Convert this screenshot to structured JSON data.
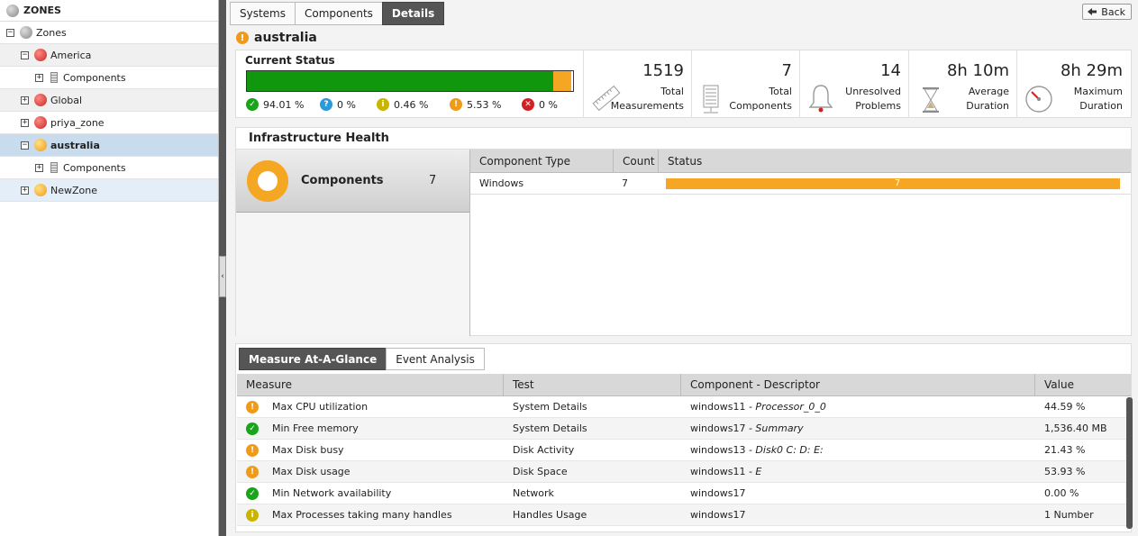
{
  "sidebar": {
    "title": "ZONES",
    "items": [
      {
        "label": "Zones"
      },
      {
        "label": "America"
      },
      {
        "label": "Components"
      },
      {
        "label": "Global"
      },
      {
        "label": "priya_zone"
      },
      {
        "label": "australia"
      },
      {
        "label": "Components"
      },
      {
        "label": "NewZone"
      }
    ]
  },
  "header": {
    "tabs": [
      "Systems",
      "Components",
      "Details"
    ],
    "active_tab": "Details",
    "back_label": "Back",
    "zone_title": "australia"
  },
  "current_status": {
    "title": "Current Status",
    "bar": {
      "green_fraction": 0.9401,
      "orange_fraction": 0.0553
    },
    "percentages": [
      {
        "icon": "ok-icon",
        "value": "94.01 %"
      },
      {
        "icon": "unknown-icon",
        "value": "0 %"
      },
      {
        "icon": "minor-icon",
        "value": "0.46 %"
      },
      {
        "icon": "major-icon",
        "value": "5.53 %"
      },
      {
        "icon": "critical-icon",
        "value": "0 %"
      }
    ]
  },
  "stats": [
    {
      "value": "1519",
      "label_1": "Total",
      "label_2": "Measurements",
      "icon": "ruler-icon"
    },
    {
      "value": "7",
      "label_1": "Total",
      "label_2": "Components",
      "icon": "server-icon"
    },
    {
      "value": "14",
      "label_1": "Unresolved",
      "label_2": "Problems",
      "icon": "bell-icon"
    },
    {
      "value": "8h 10m",
      "label_1": "Average",
      "label_2": "Duration",
      "icon": "hourglass-icon"
    },
    {
      "value": "8h 29m",
      "label_1": "Maximum",
      "label_2": "Duration",
      "icon": "gauge-icon"
    }
  ],
  "infrastructure": {
    "title": "Infrastructure Health",
    "card_label": "Components",
    "card_count": "7",
    "columns": [
      "Component Type",
      "Count",
      "Status"
    ],
    "rows": [
      {
        "type": "Windows",
        "count": "7",
        "status_value": "7",
        "status_color": "#f5a623"
      }
    ]
  },
  "measures": {
    "tabs": [
      "Measure At-A-Glance",
      "Event Analysis"
    ],
    "active_tab": "Measure At-A-Glance",
    "columns": [
      "Measure",
      "Test",
      "Component - Descriptor",
      "Value"
    ],
    "rows": [
      {
        "status": "major",
        "measure": "Max CPU utilization",
        "test": "System Details",
        "component": "windows11",
        "descriptor": " - Processor_0_0",
        "value": "44.59 %"
      },
      {
        "status": "ok",
        "measure": "Min Free memory",
        "test": "System Details",
        "component": "windows17",
        "descriptor": " - Summary",
        "value": "1,536.40 MB"
      },
      {
        "status": "major",
        "measure": "Max Disk busy",
        "test": "Disk Activity",
        "component": "windows13",
        "descriptor": " - Disk0 C: D: E:",
        "value": "21.43 %"
      },
      {
        "status": "major",
        "measure": "Max Disk usage",
        "test": "Disk Space",
        "component": "windows11",
        "descriptor": " - E",
        "value": "53.93 %"
      },
      {
        "status": "ok",
        "measure": "Min Network availability",
        "test": "Network",
        "component": "windows17",
        "descriptor": "",
        "value": "0.00 %"
      },
      {
        "status": "minor",
        "measure": "Max Processes taking many handles",
        "test": "Handles Usage",
        "component": "windows17",
        "descriptor": "",
        "value": "1 Number"
      }
    ]
  },
  "colors": {
    "ok": "#18a51a",
    "major": "#f09a1a",
    "minor": "#c9b400",
    "critical": "#d42020",
    "unknown": "#2a9ad9"
  }
}
